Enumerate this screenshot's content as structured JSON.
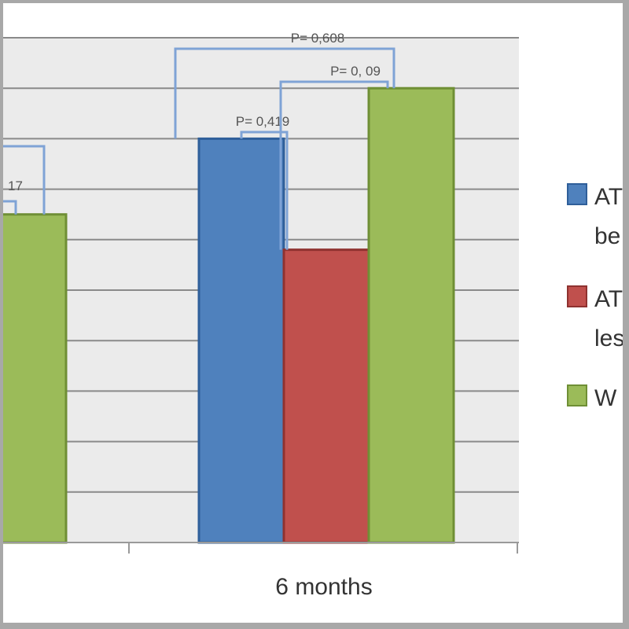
{
  "chart_data": {
    "type": "bar",
    "categories": [
      "",
      "6 months"
    ],
    "series": [
      {
        "name": "AT…be…",
        "color": "#4f81bd",
        "values": [
          null,
          8.0
        ]
      },
      {
        "name": "AT…les…",
        "color": "#c0504d",
        "values": [
          null,
          5.8
        ]
      },
      {
        "name": "W…",
        "color": "#9bbb59",
        "values": [
          6.5,
          9.0
        ]
      }
    ],
    "legend": {
      "position": "right",
      "entries": [
        {
          "line1": "AT",
          "line2": "be"
        },
        {
          "line1": "AT",
          "line2": "les"
        },
        {
          "line1": "W",
          "line2": ""
        }
      ]
    },
    "ylim": [
      0,
      10
    ],
    "grid": true,
    "plot_background": "#ebebeb",
    "annotations": [
      {
        "text": "P= 0,419",
        "between": [
          "AT…be…",
          "AT…les…"
        ],
        "category": "6 months"
      },
      {
        "text": "P= 0, 09",
        "between": [
          "AT…les…",
          "W…"
        ],
        "category": "6 months"
      },
      {
        "text": "P= 0,608",
        "between": [
          "AT…be…",
          "W…"
        ],
        "category": "6 months"
      },
      {
        "text": "17",
        "between": [
          "",
          "W…"
        ],
        "category": ""
      }
    ],
    "bracket_color": "#7fa3d6"
  }
}
